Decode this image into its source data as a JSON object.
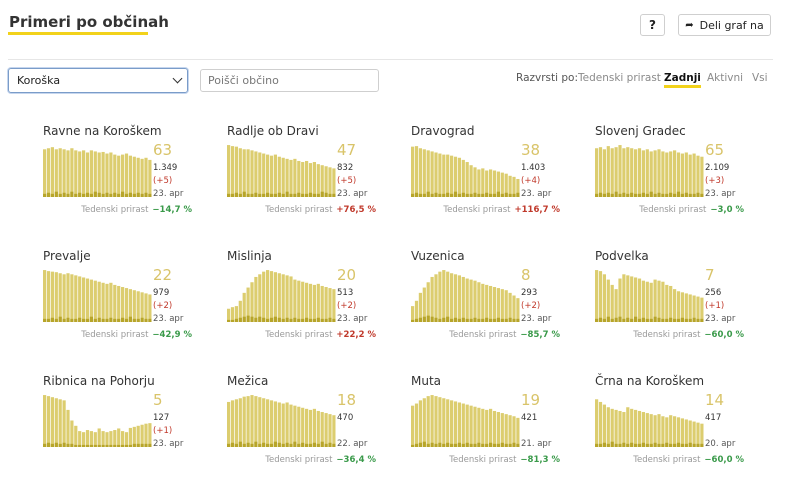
{
  "header": {
    "title": "Primeri po občinah",
    "help_label": "?",
    "share_label": "Deli graf na"
  },
  "filters": {
    "region": "Koroška",
    "search_placeholder": "Poišči občino"
  },
  "sort": {
    "label": "Razvrsti po:",
    "options": [
      "Tedenski prirast",
      "Zadnji",
      "Aktivni",
      "Vsi"
    ],
    "active": "Zadnji"
  },
  "colors": {
    "bar": "#dccd6f",
    "bar_dark": "#b7a52a",
    "big_number": "#d9c46a",
    "negative_growth": "#3a9a4a",
    "positive_growth": "#c0392b",
    "accent": "#f2d21b"
  },
  "growth_label": "Tedenski prirast",
  "chart_data": [
    {
      "type": "bar",
      "name": "Ravne na Koroškem",
      "active": "63",
      "total": "1.349",
      "change": "(+5)",
      "date": "23. apr",
      "growth": "−14,7 %",
      "growth_sign": "neg",
      "values": [
        90,
        92,
        94,
        90,
        92,
        90,
        88,
        92,
        88,
        86,
        88,
        84,
        88,
        86,
        84,
        85,
        82,
        84,
        80,
        78,
        80,
        82,
        78,
        76,
        74,
        72,
        74,
        70
      ],
      "new_values": [
        6,
        8,
        6,
        10,
        6,
        8,
        6,
        10,
        6,
        8,
        6,
        8,
        6,
        10,
        8,
        6,
        8,
        6,
        8,
        6,
        10,
        6,
        8,
        6,
        8,
        6,
        8,
        6
      ]
    },
    {
      "type": "bar",
      "name": "Radlje ob Dravi",
      "active": "47",
      "total": "832",
      "change": "(+5)",
      "date": "23. apr",
      "growth": "+76,5 %",
      "growth_sign": "pos",
      "values": [
        98,
        96,
        95,
        92,
        90,
        90,
        88,
        86,
        84,
        82,
        80,
        78,
        80,
        76,
        74,
        72,
        70,
        72,
        68,
        66,
        68,
        64,
        66,
        62,
        60,
        58,
        56,
        54
      ],
      "new_values": [
        6,
        6,
        8,
        6,
        10,
        6,
        6,
        8,
        6,
        6,
        8,
        6,
        6,
        8,
        6,
        10,
        6,
        6,
        8,
        6,
        6,
        8,
        6,
        6,
        10,
        8,
        6,
        6
      ]
    },
    {
      "type": "bar",
      "name": "Dravograd",
      "active": "38",
      "total": "1.403",
      "change": "(+4)",
      "date": "23. apr",
      "growth": "+116,7 %",
      "growth_sign": "pos",
      "values": [
        95,
        96,
        92,
        90,
        88,
        86,
        84,
        82,
        80,
        80,
        78,
        76,
        74,
        70,
        66,
        60,
        56,
        52,
        54,
        50,
        52,
        50,
        48,
        46,
        44,
        40,
        38,
        34
      ],
      "new_values": [
        6,
        8,
        6,
        6,
        10,
        6,
        8,
        6,
        6,
        8,
        6,
        10,
        6,
        8,
        6,
        6,
        8,
        6,
        6,
        8,
        6,
        6,
        10,
        6,
        8,
        6,
        6,
        8
      ]
    },
    {
      "type": "bar",
      "name": "Slovenj Gradec",
      "active": "65",
      "total": "2.109",
      "change": "(+3)",
      "date": "23. apr",
      "growth": "−3,0 %",
      "growth_sign": "neg",
      "values": [
        92,
        94,
        90,
        96,
        92,
        94,
        98,
        92,
        94,
        92,
        90,
        92,
        88,
        90,
        86,
        88,
        90,
        86,
        84,
        86,
        88,
        84,
        82,
        84,
        80,
        82,
        78,
        76
      ],
      "new_values": [
        6,
        8,
        6,
        8,
        6,
        10,
        6,
        8,
        6,
        8,
        6,
        6,
        8,
        6,
        10,
        6,
        8,
        6,
        6,
        8,
        6,
        10,
        6,
        8,
        6,
        6,
        8,
        6
      ]
    },
    {
      "type": "bar",
      "name": "Prevalje",
      "active": "22",
      "total": "979",
      "change": "(+2)",
      "date": "23. apr",
      "growth": "−42,9 %",
      "growth_sign": "neg",
      "values": [
        98,
        96,
        95,
        94,
        92,
        90,
        92,
        90,
        88,
        86,
        84,
        82,
        80,
        78,
        76,
        74,
        72,
        74,
        70,
        68,
        66,
        64,
        62,
        60,
        58,
        56,
        54,
        52
      ],
      "new_values": [
        6,
        6,
        8,
        6,
        10,
        6,
        8,
        6,
        6,
        8,
        6,
        6,
        10,
        6,
        8,
        6,
        6,
        8,
        6,
        6,
        8,
        6,
        10,
        6,
        6,
        8,
        6,
        6
      ]
    },
    {
      "type": "bar",
      "name": "Mislinja",
      "active": "20",
      "total": "513",
      "change": "(+2)",
      "date": "23. apr",
      "growth": "+22,2 %",
      "growth_sign": "pos",
      "values": [
        25,
        28,
        30,
        40,
        55,
        65,
        75,
        85,
        90,
        95,
        98,
        96,
        94,
        92,
        90,
        88,
        86,
        80,
        78,
        76,
        74,
        72,
        70,
        72,
        68,
        66,
        64,
        62
      ],
      "new_values": [
        4,
        4,
        6,
        8,
        10,
        12,
        10,
        8,
        10,
        8,
        6,
        8,
        10,
        8,
        6,
        8,
        6,
        8,
        6,
        6,
        8,
        6,
        6,
        8,
        6,
        6,
        8,
        6
      ]
    },
    {
      "type": "bar",
      "name": "Vuzenica",
      "active": "8",
      "total": "293",
      "change": "(+2)",
      "date": "23. apr",
      "growth": "−85,7 %",
      "growth_sign": "neg",
      "values": [
        30,
        40,
        55,
        65,
        75,
        85,
        90,
        95,
        98,
        95,
        92,
        90,
        88,
        85,
        82,
        80,
        78,
        75,
        72,
        70,
        68,
        66,
        64,
        62,
        60,
        55,
        50,
        45
      ],
      "new_values": [
        4,
        6,
        8,
        10,
        12,
        10,
        8,
        6,
        8,
        10,
        6,
        8,
        6,
        8,
        6,
        6,
        8,
        6,
        6,
        8,
        6,
        6,
        8,
        6,
        6,
        8,
        6,
        6
      ]
    },
    {
      "type": "bar",
      "name": "Podvelka",
      "active": "7",
      "total": "256",
      "change": "(+1)",
      "date": "23. apr",
      "growth": "−60,0 %",
      "growth_sign": "neg",
      "values": [
        98,
        96,
        90,
        80,
        70,
        62,
        82,
        90,
        88,
        86,
        84,
        82,
        78,
        76,
        74,
        80,
        78,
        76,
        70,
        68,
        62,
        58,
        56,
        54,
        52,
        50,
        48,
        46
      ],
      "new_values": [
        6,
        8,
        6,
        10,
        6,
        8,
        10,
        6,
        8,
        6,
        10,
        6,
        8,
        6,
        6,
        10,
        8,
        6,
        6,
        8,
        6,
        6,
        8,
        6,
        6,
        8,
        6,
        6
      ]
    },
    {
      "type": "bar",
      "name": "Ribnica na Pohorju",
      "active": "5",
      "total": "127",
      "change": "(+1)",
      "date": "23. apr",
      "growth": "",
      "growth_sign": "neg",
      "values": [
        98,
        96,
        94,
        92,
        90,
        88,
        70,
        50,
        40,
        30,
        28,
        32,
        30,
        28,
        35,
        30,
        28,
        30,
        32,
        35,
        30,
        28,
        36,
        38,
        40,
        42,
        44,
        45
      ],
      "new_values": [
        6,
        8,
        6,
        8,
        6,
        8,
        6,
        6,
        4,
        4,
        4,
        4,
        4,
        4,
        4,
        4,
        4,
        4,
        4,
        4,
        4,
        4,
        4,
        6,
        6,
        6,
        6,
        6
      ]
    },
    {
      "type": "bar",
      "name": "Mežica",
      "active": "18",
      "total": "470",
      "change": "",
      "date": "22. apr",
      "growth": "−36,4 %",
      "growth_sign": "neg",
      "values": [
        85,
        88,
        90,
        92,
        95,
        96,
        98,
        96,
        94,
        92,
        90,
        88,
        86,
        84,
        82,
        84,
        80,
        78,
        76,
        74,
        72,
        70,
        72,
        68,
        66,
        64,
        62,
        60
      ],
      "new_values": [
        6,
        8,
        6,
        10,
        6,
        8,
        6,
        10,
        6,
        8,
        6,
        6,
        10,
        8,
        6,
        8,
        6,
        10,
        6,
        8,
        6,
        6,
        8,
        6,
        10,
        6,
        8,
        6
      ]
    },
    {
      "type": "bar",
      "name": "Muta",
      "active": "19",
      "total": "421",
      "change": "",
      "date": "21. apr",
      "growth": "−81,3 %",
      "growth_sign": "neg",
      "values": [
        78,
        82,
        88,
        92,
        96,
        98,
        96,
        94,
        92,
        90,
        88,
        86,
        84,
        82,
        80,
        78,
        76,
        74,
        72,
        70,
        72,
        68,
        66,
        64,
        62,
        60,
        58,
        55
      ],
      "new_values": [
        4,
        6,
        8,
        10,
        6,
        8,
        6,
        8,
        6,
        8,
        6,
        6,
        8,
        6,
        8,
        6,
        6,
        8,
        6,
        6,
        8,
        6,
        6,
        8,
        6,
        6,
        8,
        6
      ]
    },
    {
      "type": "bar",
      "name": "Črna na Koroškem",
      "active": "14",
      "total": "417",
      "change": "",
      "date": "20. apr",
      "growth": "−60,0 %",
      "growth_sign": "neg",
      "values": [
        90,
        85,
        80,
        75,
        72,
        70,
        68,
        66,
        75,
        72,
        70,
        68,
        66,
        64,
        62,
        60,
        62,
        58,
        56,
        60,
        58,
        56,
        54,
        52,
        50,
        48,
        46,
        44
      ],
      "new_values": [
        6,
        6,
        8,
        6,
        10,
        6,
        6,
        8,
        6,
        8,
        6,
        6,
        8,
        6,
        6,
        8,
        6,
        6,
        8,
        6,
        6,
        8,
        6,
        6,
        8,
        6,
        6,
        6
      ]
    }
  ]
}
